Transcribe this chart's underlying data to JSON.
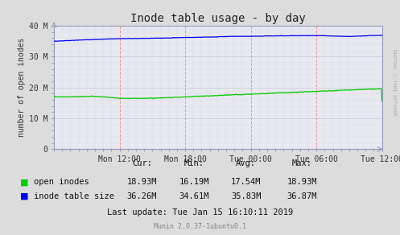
{
  "title": "Inode table usage - by day",
  "ylabel": "number of open inodes",
  "background_color": "#DCDCDC",
  "plot_bg_color": "#E8E8F0",
  "grid_color_major": "#C8C8D8",
  "grid_color_minor": "#C8C8D8",
  "vline_color": "#E89898",
  "ylim": [
    0,
    40000000
  ],
  "ytick_labels": [
    "0",
    "10 M",
    "20 M",
    "30 M",
    "40 M"
  ],
  "ytick_values": [
    0,
    10000000,
    20000000,
    30000000,
    40000000
  ],
  "xtick_labels": [
    "Mon 12:00",
    "Mon 18:00",
    "Tue 00:00",
    "Tue 06:00",
    "Tue 12:00"
  ],
  "line_green_color": "#00CC00",
  "line_blue_color": "#0000EE",
  "legend_labels": [
    "open inodes",
    "inode table size"
  ],
  "cur_open": "18.93M",
  "min_open": "16.19M",
  "avg_open": "17.54M",
  "max_open": "18.93M",
  "cur_table": "36.26M",
  "min_table": "34.61M",
  "avg_table": "35.83M",
  "max_table": "36.87M",
  "last_update": "Last update: Tue Jan 15 16:10:11 2019",
  "munin_version": "Munin 2.0.37-1ubuntu0.1",
  "rrdtool_text": "RRDTOOL / TOBI OETIKER",
  "n_points": 500
}
